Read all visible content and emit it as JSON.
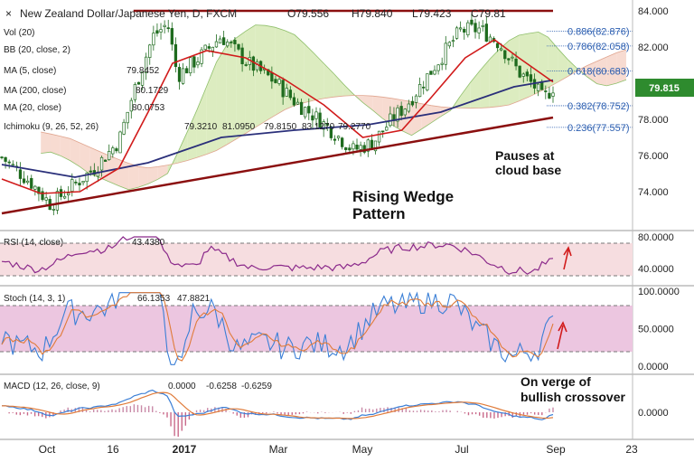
{
  "header": {
    "symbol_title": "New Zealand Dollar/Japanese Yen, D, FXCM",
    "open": "O79.556",
    "high": "H79.840",
    "low": "L79.423",
    "close": "C79.81"
  },
  "indicators": {
    "vol": {
      "label": "Vol (20)"
    },
    "bb": {
      "label": "BB (20, close, 2)"
    },
    "ma5": {
      "label": "MA (5, close)",
      "value": "79.8452"
    },
    "ma200": {
      "label": "MA (200, close)",
      "value": "80.1729"
    },
    "ma20": {
      "label": "MA (20, close)",
      "value": "80.0753"
    },
    "ichimoku": {
      "label": "Ichimoku (9, 26, 52, 26)",
      "v1": "79.3210",
      "v2": "81.0950",
      "v3": "79.8150",
      "v4": "83.1270",
      "v5": "79.2770"
    },
    "rsi": {
      "label": "RSI (14, close)",
      "value": "43.4380"
    },
    "stoch": {
      "label": "Stoch (14, 3, 1)",
      "v1": "66.1353",
      "v2": "47.8821"
    },
    "macd": {
      "label": "MACD (12, 26, close, 9)",
      "v1": "0.0000",
      "v2": "-0.6258",
      "v3": "-0.6259"
    }
  },
  "fib_levels": [
    {
      "label": "0.886(82.876)",
      "price": 82.876
    },
    {
      "label": "0.786(82.058)",
      "price": 82.058
    },
    {
      "label": "0.618(80.683)",
      "price": 80.683
    },
    {
      "label": "0.382(78.752)",
      "price": 78.752
    },
    {
      "label": "0.236(77.557)",
      "price": 77.557
    }
  ],
  "current_price": {
    "label": "79.815",
    "value": 79.815
  },
  "annotations": {
    "pattern": "Rising Wedge\nPattern",
    "cloud": "Pauses at\ncloud base",
    "macd_note": "On verge of\nbullish crossover"
  },
  "chart_data": {
    "type": "candlestick",
    "price_axis": {
      "range": [
        72.5,
        84.3
      ],
      "ticks": [
        "84.000",
        "82.000",
        "80.000",
        "78.000",
        "76.000",
        "74.000"
      ],
      "tick_values": [
        84,
        82,
        80,
        78,
        76,
        74
      ]
    },
    "rsi_axis": {
      "ticks": [
        "80.0000",
        "40.0000"
      ],
      "tick_values": [
        80,
        40
      ],
      "overbought": 70,
      "oversold": 30
    },
    "stoch_axis": {
      "ticks": [
        "100.0000",
        "50.0000",
        "0.0000"
      ],
      "tick_values": [
        100,
        50,
        0
      ],
      "upper": 80,
      "lower": 20
    },
    "macd_axis": {
      "ticks": [
        "0.0000"
      ],
      "tick_values": [
        0
      ]
    },
    "x_ticks": [
      "Oct",
      "16",
      "2017",
      "Mar",
      "May",
      "Jul",
      "Sep",
      "23"
    ],
    "close_path": [
      {
        "t": 0,
        "v": 75.9
      },
      {
        "t": 6,
        "v": 74.5
      },
      {
        "t": 10,
        "v": 73.3
      },
      {
        "t": 14,
        "v": 74.2
      },
      {
        "t": 19,
        "v": 75.3
      },
      {
        "t": 24,
        "v": 76.8
      },
      {
        "t": 27,
        "v": 79.5
      },
      {
        "t": 31,
        "v": 82.6
      },
      {
        "t": 34,
        "v": 83.3
      },
      {
        "t": 36,
        "v": 80.4
      },
      {
        "t": 40,
        "v": 81.3
      },
      {
        "t": 45,
        "v": 82.6
      },
      {
        "t": 50,
        "v": 81.2
      },
      {
        "t": 56,
        "v": 80.1
      },
      {
        "t": 60,
        "v": 79.0
      },
      {
        "t": 64,
        "v": 78.2
      },
      {
        "t": 68,
        "v": 77.3
      },
      {
        "t": 72,
        "v": 76.3
      },
      {
        "t": 76,
        "v": 76.7
      },
      {
        "t": 80,
        "v": 78.0
      },
      {
        "t": 83,
        "v": 78.8
      },
      {
        "t": 87,
        "v": 80.3
      },
      {
        "t": 91,
        "v": 81.8
      },
      {
        "t": 94,
        "v": 82.9
      },
      {
        "t": 98,
        "v": 83.0
      },
      {
        "t": 102,
        "v": 82.2
      },
      {
        "t": 106,
        "v": 80.6
      },
      {
        "t": 109,
        "v": 79.9
      },
      {
        "t": 111,
        "v": 79.1
      },
      {
        "t": 113,
        "v": 79.8
      }
    ],
    "ma200_path": [
      {
        "t": 0,
        "v": 75.5
      },
      {
        "t": 15,
        "v": 74.8
      },
      {
        "t": 30,
        "v": 75.6
      },
      {
        "t": 45,
        "v": 77.0
      },
      {
        "t": 60,
        "v": 77.4
      },
      {
        "t": 75,
        "v": 77.7
      },
      {
        "t": 90,
        "v": 78.4
      },
      {
        "t": 105,
        "v": 79.8
      },
      {
        "t": 113,
        "v": 80.17
      }
    ],
    "ma20_path": [
      {
        "t": 0,
        "v": 74.7
      },
      {
        "t": 8,
        "v": 73.9
      },
      {
        "t": 16,
        "v": 74.0
      },
      {
        "t": 24,
        "v": 75.3
      },
      {
        "t": 30,
        "v": 78.4
      },
      {
        "t": 35,
        "v": 81.1
      },
      {
        "t": 42,
        "v": 81.8
      },
      {
        "t": 50,
        "v": 81.4
      },
      {
        "t": 58,
        "v": 80.2
      },
      {
        "t": 66,
        "v": 78.8
      },
      {
        "t": 74,
        "v": 77.0
      },
      {
        "t": 82,
        "v": 77.4
      },
      {
        "t": 88,
        "v": 79.2
      },
      {
        "t": 95,
        "v": 81.4
      },
      {
        "t": 101,
        "v": 82.4
      },
      {
        "t": 106,
        "v": 81.4
      },
      {
        "t": 113,
        "v": 80.07
      }
    ],
    "wedge_lower": [
      {
        "t": 0,
        "v": 72.8
      },
      {
        "t": 113,
        "v": 78.1
      }
    ],
    "wedge_upper": [
      {
        "t": 27,
        "v": 84.0
      },
      {
        "t": 113,
        "v": 84.0
      }
    ]
  }
}
